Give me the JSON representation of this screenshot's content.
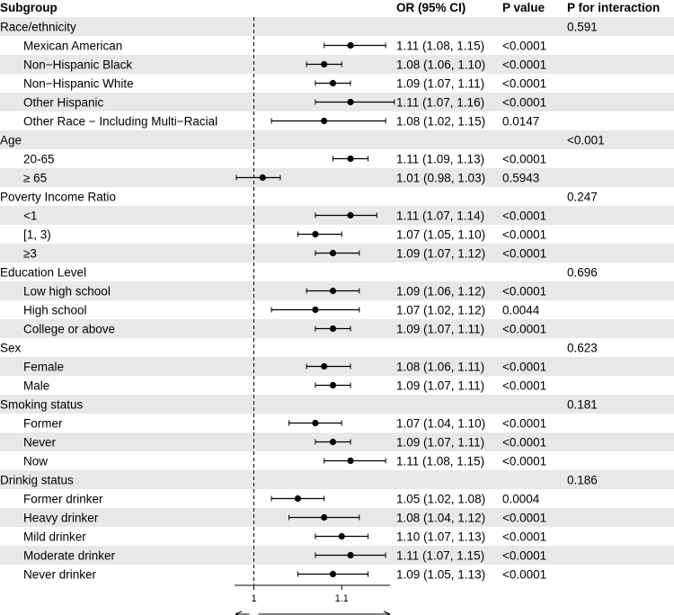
{
  "chart_data": {
    "type": "forest",
    "headers": {
      "subgroup": "Subgroup",
      "or_ci": "OR (95% CI)",
      "p_value": "P value",
      "p_interaction": "P for interaction"
    },
    "reference_line": 1,
    "x_ticks": [
      {
        "value": 1,
        "label": "1"
      },
      {
        "value": 1.1,
        "label": "1.1"
      }
    ],
    "xlim": [
      0.978,
      1.155
    ],
    "rows": [
      {
        "label": "Race/ethnicity",
        "group": true,
        "p_interaction": "0.591"
      },
      {
        "label": "Mexican American",
        "or": 1.11,
        "lo": 1.08,
        "hi": 1.15,
        "or_ci": "1.11 (1.08, 1.15)",
        "p": "<0.0001"
      },
      {
        "label": "Non−Hispanic Black",
        "or": 1.08,
        "lo": 1.06,
        "hi": 1.1,
        "or_ci": "1.08 (1.06, 1.10)",
        "p": "<0.0001"
      },
      {
        "label": "Non−Hispanic White",
        "or": 1.09,
        "lo": 1.07,
        "hi": 1.11,
        "or_ci": "1.09 (1.07, 1.11)",
        "p": "<0.0001"
      },
      {
        "label": "Other Hispanic",
        "or": 1.11,
        "lo": 1.07,
        "hi": 1.16,
        "or_ci": "1.11 (1.07, 1.16)",
        "p": "<0.0001"
      },
      {
        "label": "Other Race − Including Multi−Racial",
        "or": 1.08,
        "lo": 1.02,
        "hi": 1.15,
        "or_ci": "1.08 (1.02, 1.15)",
        "p": "0.0147"
      },
      {
        "label": "Age",
        "group": true,
        "p_interaction": "<0.001"
      },
      {
        "label": "20-65",
        "or": 1.11,
        "lo": 1.09,
        "hi": 1.13,
        "or_ci": "1.11 (1.09, 1.13)",
        "p": "<0.0001"
      },
      {
        "label": "≥ 65",
        "or": 1.01,
        "lo": 0.98,
        "hi": 1.03,
        "or_ci": "1.01 (0.98, 1.03)",
        "p": "0.5943"
      },
      {
        "label": "Poverty Income Ratio",
        "group": true,
        "p_interaction": "0.247"
      },
      {
        "label": "<1",
        "or": 1.11,
        "lo": 1.07,
        "hi": 1.14,
        "or_ci": "1.11 (1.07, 1.14)",
        "p": "<0.0001"
      },
      {
        "label": " [1, 3)",
        "or": 1.07,
        "lo": 1.05,
        "hi": 1.1,
        "or_ci": "1.07 (1.05, 1.10)",
        "p": "<0.0001"
      },
      {
        "label": "≥3",
        "or": 1.09,
        "lo": 1.07,
        "hi": 1.12,
        "or_ci": "1.09 (1.07, 1.12)",
        "p": "<0.0001"
      },
      {
        "label": "Education Level",
        "group": true,
        "p_interaction": "0.696"
      },
      {
        "label": "Low high school",
        "or": 1.09,
        "lo": 1.06,
        "hi": 1.12,
        "or_ci": "1.09 (1.06, 1.12)",
        "p": "<0.0001"
      },
      {
        "label": "High school",
        "or": 1.07,
        "lo": 1.02,
        "hi": 1.12,
        "or_ci": "1.07 (1.02, 1.12)",
        "p": "0.0044"
      },
      {
        "label": "College or above",
        "or": 1.09,
        "lo": 1.07,
        "hi": 1.11,
        "or_ci": "1.09 (1.07, 1.11)",
        "p": "<0.0001"
      },
      {
        "label": "Sex",
        "group": true,
        "p_interaction": "0.623"
      },
      {
        "label": "Female",
        "or": 1.08,
        "lo": 1.06,
        "hi": 1.11,
        "or_ci": "1.08 (1.06, 1.11)",
        "p": "<0.0001"
      },
      {
        "label": "Male",
        "or": 1.09,
        "lo": 1.07,
        "hi": 1.11,
        "or_ci": "1.09 (1.07, 1.11)",
        "p": "<0.0001"
      },
      {
        "label": "Smoking status",
        "group": true,
        "p_interaction": "0.181"
      },
      {
        "label": "Former",
        "or": 1.07,
        "lo": 1.04,
        "hi": 1.1,
        "or_ci": "1.07 (1.04, 1.10)",
        "p": "<0.0001"
      },
      {
        "label": "Never",
        "or": 1.09,
        "lo": 1.07,
        "hi": 1.11,
        "or_ci": "1.09 (1.07, 1.11)",
        "p": "<0.0001"
      },
      {
        "label": "Now",
        "or": 1.11,
        "lo": 1.08,
        "hi": 1.15,
        "or_ci": "1.11 (1.08, 1.15)",
        "p": "<0.0001"
      },
      {
        "label": "Drinkig status",
        "group": true,
        "p_interaction": "0.186"
      },
      {
        "label": "Former drinker",
        "or": 1.05,
        "lo": 1.02,
        "hi": 1.08,
        "or_ci": "1.05 (1.02, 1.08)",
        "p": "0.0004"
      },
      {
        "label": "Heavy drinker",
        "or": 1.08,
        "lo": 1.04,
        "hi": 1.12,
        "or_ci": "1.08 (1.04, 1.12)",
        "p": "<0.0001"
      },
      {
        "label": "Mild drinker",
        "or": 1.1,
        "lo": 1.07,
        "hi": 1.13,
        "or_ci": "1.10 (1.07, 1.13)",
        "p": "<0.0001"
      },
      {
        "label": "Moderate drinker",
        "or": 1.11,
        "lo": 1.07,
        "hi": 1.15,
        "or_ci": "1.11 (1.07, 1.15)",
        "p": "<0.0001"
      },
      {
        "label": "Never drinker",
        "or": 1.09,
        "lo": 1.05,
        "hi": 1.13,
        "or_ci": "1.09 (1.05, 1.13)",
        "p": "<0.0001"
      }
    ],
    "stripe_color": "#e8e8e8",
    "grid": false,
    "legend": "none"
  }
}
